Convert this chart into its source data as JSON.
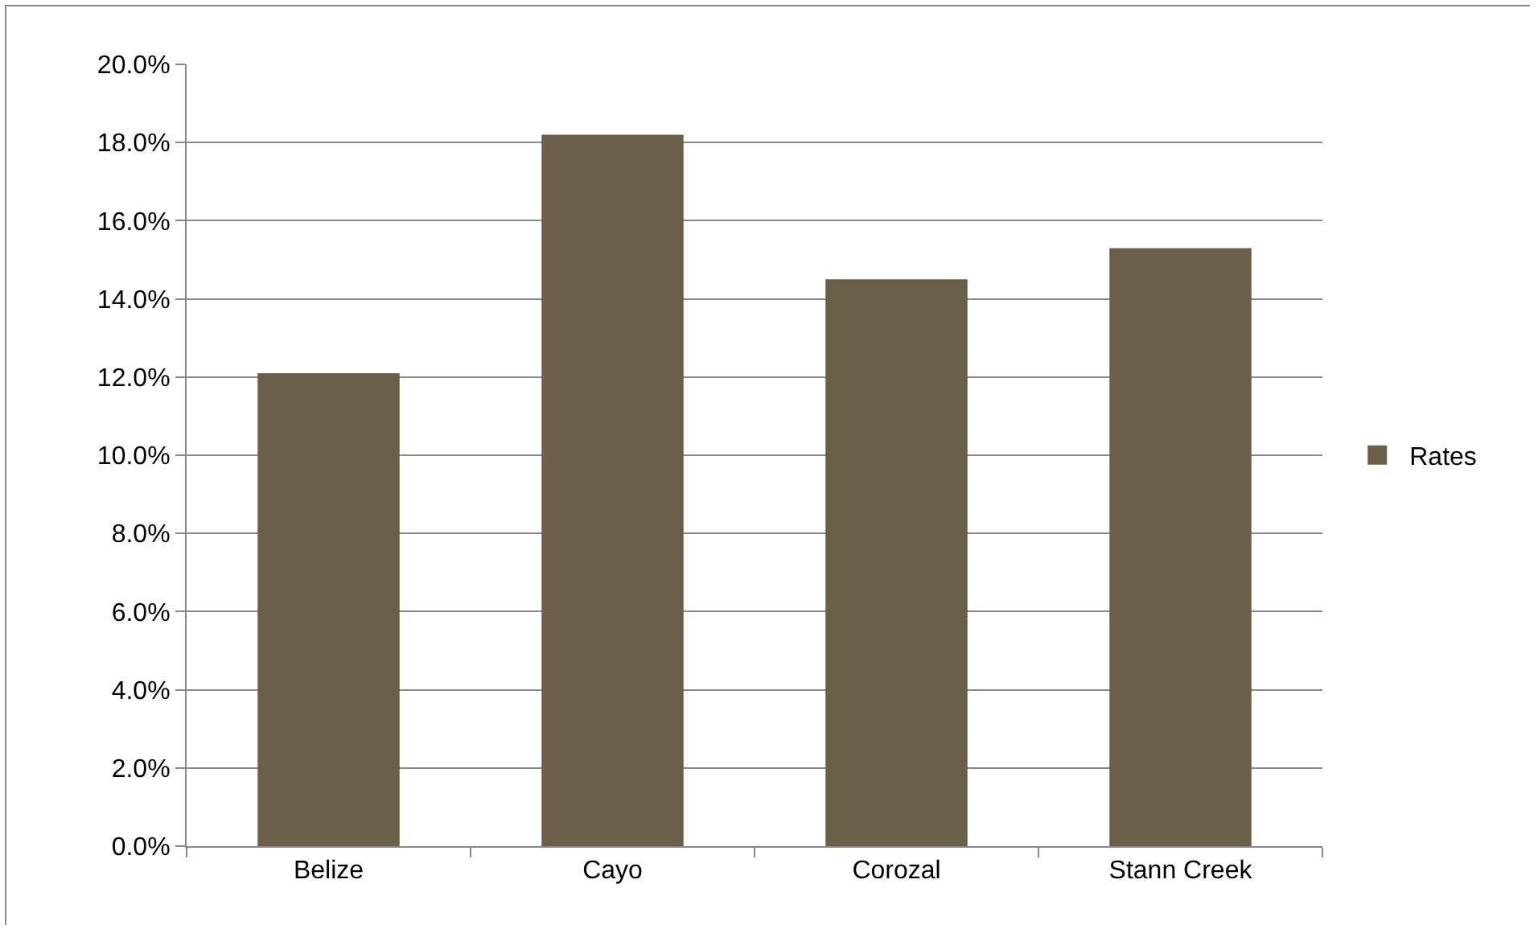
{
  "chart_data": {
    "type": "bar",
    "categories": [
      "Belize",
      "Cayo",
      "Corozal",
      "Stann Creek"
    ],
    "series": [
      {
        "name": "Rates",
        "color": "#6b5f48",
        "values": [
          12.1,
          18.2,
          14.5,
          15.3
        ]
      }
    ],
    "ylim": [
      0,
      20
    ],
    "yticks": [
      {
        "value": 0,
        "label": "0.0%"
      },
      {
        "value": 2,
        "label": "2.0%"
      },
      {
        "value": 4,
        "label": "4.0%"
      },
      {
        "value": 6,
        "label": "6.0%"
      },
      {
        "value": 8,
        "label": "8.0%"
      },
      {
        "value": 10,
        "label": "10.0%"
      },
      {
        "value": 12,
        "label": "12.0%"
      },
      {
        "value": 14,
        "label": "14.0%"
      },
      {
        "value": 16,
        "label": "16.0%"
      },
      {
        "value": 18,
        "label": "18.0%"
      },
      {
        "value": 20,
        "label": "20.0%"
      }
    ],
    "grid": "y",
    "legend": "right"
  }
}
